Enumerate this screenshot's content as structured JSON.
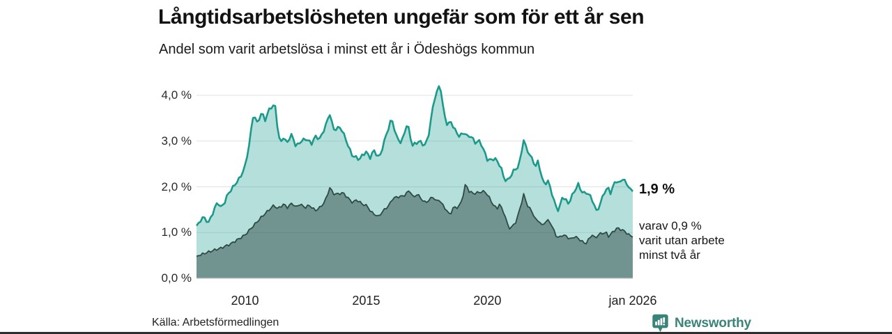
{
  "page": {
    "title": "Långtidsarbetslösheten ungefär som för ett år sen",
    "subtitle": "Andel som varit arbetslösa i minst ett år i Ödeshögs kommun",
    "source": "Källa: Arbetsförmedlingen",
    "brand": "Newsworthy"
  },
  "chart_data": {
    "type": "area",
    "title": "Långtidsarbetslösheten ungefär som för ett år sen",
    "subtitle": "Andel som varit arbetslösa i minst ett år i Ödeshögs kommun",
    "unit": "%",
    "x_axis": {
      "domain": [
        2008,
        2026
      ],
      "ticks": [
        {
          "pos": 2010,
          "label": "2010"
        },
        {
          "pos": 2015,
          "label": "2015"
        },
        {
          "pos": 2020,
          "label": "2020"
        },
        {
          "pos": 2026,
          "label": "jan 2026"
        }
      ]
    },
    "y_axis": {
      "domain": [
        0,
        4.35
      ],
      "gridlines": true,
      "ticks": [
        {
          "value": 0,
          "label": "0,0 %"
        },
        {
          "value": 1,
          "label": "1,0 %"
        },
        {
          "value": 2,
          "label": "2,0 %"
        },
        {
          "value": 3,
          "label": "3,0 %"
        },
        {
          "value": 4,
          "label": "4,0 %"
        }
      ]
    },
    "series": [
      {
        "name": "Andel arbetslösa minst ett år",
        "line_color": "#1a9a8b",
        "fill_color": "rgba(26,154,139,0.32)",
        "line_width": 2.6,
        "end_value": 1.9,
        "points": [
          [
            2008.0,
            1.15
          ],
          [
            2008.25,
            1.33
          ],
          [
            2008.35,
            1.3
          ],
          [
            2008.5,
            1.22
          ],
          [
            2008.73,
            1.5
          ],
          [
            2008.87,
            1.68
          ],
          [
            2009.0,
            1.55
          ],
          [
            2009.15,
            1.65
          ],
          [
            2009.3,
            1.85
          ],
          [
            2009.45,
            1.95
          ],
          [
            2009.65,
            2.1
          ],
          [
            2009.8,
            2.2
          ],
          [
            2010.0,
            2.45
          ],
          [
            2010.15,
            2.85
          ],
          [
            2010.35,
            3.6
          ],
          [
            2010.5,
            3.4
          ],
          [
            2010.7,
            3.62
          ],
          [
            2010.85,
            3.45
          ],
          [
            2011.0,
            3.7
          ],
          [
            2011.1,
            3.75
          ],
          [
            2011.25,
            3.76
          ],
          [
            2011.3,
            3.5
          ],
          [
            2011.4,
            3.05
          ],
          [
            2011.5,
            3.0
          ],
          [
            2011.6,
            3.1
          ],
          [
            2011.7,
            2.95
          ],
          [
            2011.95,
            3.15
          ],
          [
            2012.1,
            2.87
          ],
          [
            2012.25,
            2.97
          ],
          [
            2012.5,
            3.05
          ],
          [
            2012.75,
            2.95
          ],
          [
            2012.9,
            3.1
          ],
          [
            2013.1,
            3.05
          ],
          [
            2013.3,
            3.3
          ],
          [
            2013.5,
            3.6
          ],
          [
            2013.65,
            3.25
          ],
          [
            2013.95,
            3.3
          ],
          [
            2014.15,
            3.05
          ],
          [
            2014.4,
            2.7
          ],
          [
            2014.7,
            2.6
          ],
          [
            2015.0,
            2.77
          ],
          [
            2015.15,
            2.62
          ],
          [
            2015.3,
            2.8
          ],
          [
            2015.55,
            2.63
          ],
          [
            2015.75,
            3.0
          ],
          [
            2016.05,
            3.5
          ],
          [
            2016.25,
            3.1
          ],
          [
            2016.45,
            2.95
          ],
          [
            2016.7,
            3.4
          ],
          [
            2016.9,
            2.9
          ],
          [
            2017.2,
            3.0
          ],
          [
            2017.4,
            2.9
          ],
          [
            2017.55,
            3.05
          ],
          [
            2017.8,
            3.9
          ],
          [
            2018.05,
            4.26
          ],
          [
            2018.2,
            3.62
          ],
          [
            2018.35,
            3.35
          ],
          [
            2018.5,
            3.42
          ],
          [
            2018.65,
            3.25
          ],
          [
            2018.85,
            3.1
          ],
          [
            2019.05,
            3.2
          ],
          [
            2019.15,
            3.1
          ],
          [
            2019.3,
            3.12
          ],
          [
            2019.5,
            2.97
          ],
          [
            2019.7,
            3.0
          ],
          [
            2019.85,
            2.8
          ],
          [
            2020.0,
            2.6
          ],
          [
            2020.15,
            2.58
          ],
          [
            2020.3,
            2.63
          ],
          [
            2020.55,
            2.45
          ],
          [
            2020.7,
            2.16
          ],
          [
            2020.85,
            2.14
          ],
          [
            2021.1,
            2.36
          ],
          [
            2021.3,
            2.45
          ],
          [
            2021.5,
            3.03
          ],
          [
            2021.6,
            2.85
          ],
          [
            2021.75,
            2.7
          ],
          [
            2021.9,
            2.55
          ],
          [
            2022.0,
            2.45
          ],
          [
            2022.1,
            2.57
          ],
          [
            2022.25,
            2.2
          ],
          [
            2022.35,
            2.06
          ],
          [
            2022.5,
            2.12
          ],
          [
            2022.6,
            1.98
          ],
          [
            2022.8,
            1.6
          ],
          [
            2022.95,
            1.47
          ],
          [
            2023.1,
            1.8
          ],
          [
            2023.35,
            1.63
          ],
          [
            2023.55,
            1.87
          ],
          [
            2023.75,
            2.05
          ],
          [
            2023.95,
            1.85
          ],
          [
            2024.1,
            1.88
          ],
          [
            2024.3,
            1.76
          ],
          [
            2024.5,
            1.47
          ],
          [
            2024.65,
            1.6
          ],
          [
            2024.8,
            1.87
          ],
          [
            2025.0,
            1.97
          ],
          [
            2025.1,
            1.85
          ],
          [
            2025.25,
            2.1
          ],
          [
            2025.35,
            2.13
          ],
          [
            2025.45,
            2.05
          ],
          [
            2025.55,
            2.2
          ],
          [
            2025.7,
            2.1
          ],
          [
            2025.8,
            2.03
          ],
          [
            2026.0,
            1.9
          ]
        ]
      },
      {
        "name": "varav arbetslösa minst två år",
        "line_color": "#2d4a45",
        "fill_color": "rgba(45,74,69,0.5)",
        "line_width": 1.8,
        "end_value": 0.9,
        "points": [
          [
            2008.0,
            0.48
          ],
          [
            2008.35,
            0.55
          ],
          [
            2008.75,
            0.62
          ],
          [
            2009.0,
            0.66
          ],
          [
            2009.4,
            0.75
          ],
          [
            2009.8,
            0.88
          ],
          [
            2010.0,
            0.95
          ],
          [
            2010.35,
            1.15
          ],
          [
            2010.7,
            1.35
          ],
          [
            2011.0,
            1.5
          ],
          [
            2011.2,
            1.6
          ],
          [
            2011.35,
            1.52
          ],
          [
            2011.6,
            1.62
          ],
          [
            2011.75,
            1.55
          ],
          [
            2011.95,
            1.65
          ],
          [
            2012.1,
            1.55
          ],
          [
            2012.25,
            1.62
          ],
          [
            2012.5,
            1.55
          ],
          [
            2012.65,
            1.6
          ],
          [
            2012.9,
            1.48
          ],
          [
            2013.1,
            1.55
          ],
          [
            2013.3,
            1.68
          ],
          [
            2013.5,
            1.98
          ],
          [
            2013.65,
            1.85
          ],
          [
            2013.8,
            1.84
          ],
          [
            2014.05,
            1.87
          ],
          [
            2014.2,
            1.78
          ],
          [
            2014.45,
            1.65
          ],
          [
            2014.6,
            1.72
          ],
          [
            2014.85,
            1.62
          ],
          [
            2015.05,
            1.58
          ],
          [
            2015.2,
            1.45
          ],
          [
            2015.5,
            1.35
          ],
          [
            2015.75,
            1.5
          ],
          [
            2015.95,
            1.6
          ],
          [
            2016.1,
            1.75
          ],
          [
            2016.3,
            1.78
          ],
          [
            2016.55,
            1.8
          ],
          [
            2016.8,
            1.93
          ],
          [
            2016.95,
            1.75
          ],
          [
            2017.1,
            1.85
          ],
          [
            2017.3,
            1.72
          ],
          [
            2017.45,
            1.65
          ],
          [
            2017.75,
            1.78
          ],
          [
            2017.9,
            1.68
          ],
          [
            2018.0,
            1.72
          ],
          [
            2018.3,
            1.5
          ],
          [
            2018.45,
            1.38
          ],
          [
            2018.6,
            1.55
          ],
          [
            2018.8,
            1.55
          ],
          [
            2018.95,
            1.7
          ],
          [
            2019.1,
            2.07
          ],
          [
            2019.25,
            1.9
          ],
          [
            2019.45,
            1.85
          ],
          [
            2019.65,
            1.88
          ],
          [
            2019.9,
            1.9
          ],
          [
            2020.1,
            1.75
          ],
          [
            2020.25,
            1.6
          ],
          [
            2020.4,
            1.52
          ],
          [
            2020.5,
            1.62
          ],
          [
            2020.7,
            1.42
          ],
          [
            2020.85,
            1.15
          ],
          [
            2020.95,
            1.08
          ],
          [
            2021.2,
            1.25
          ],
          [
            2021.5,
            1.83
          ],
          [
            2021.65,
            1.6
          ],
          [
            2021.85,
            1.45
          ],
          [
            2022.0,
            1.28
          ],
          [
            2022.15,
            1.25
          ],
          [
            2022.25,
            1.15
          ],
          [
            2022.4,
            1.24
          ],
          [
            2022.55,
            1.27
          ],
          [
            2022.7,
            1.1
          ],
          [
            2022.85,
            0.92
          ],
          [
            2022.95,
            0.88
          ],
          [
            2023.1,
            0.95
          ],
          [
            2023.25,
            0.92
          ],
          [
            2023.45,
            0.85
          ],
          [
            2023.6,
            0.92
          ],
          [
            2023.8,
            0.85
          ],
          [
            2024.05,
            0.75
          ],
          [
            2024.25,
            0.9
          ],
          [
            2024.35,
            0.97
          ],
          [
            2024.45,
            0.85
          ],
          [
            2024.55,
            0.95
          ],
          [
            2024.7,
            0.98
          ],
          [
            2024.9,
            1.0
          ],
          [
            2025.0,
            0.92
          ],
          [
            2025.2,
            1.02
          ],
          [
            2025.35,
            1.1
          ],
          [
            2025.6,
            1.05
          ],
          [
            2025.85,
            0.95
          ],
          [
            2026.0,
            0.9
          ]
        ]
      }
    ],
    "annotations": {
      "primary_value": "1,9 %",
      "secondary_lines": [
        "varav 0,9 %",
        "varit utan arbete",
        "minst två år"
      ]
    },
    "grid_color": "#e1e1e1",
    "baseline_color": "#c8c8c8",
    "legend_position": "none"
  }
}
